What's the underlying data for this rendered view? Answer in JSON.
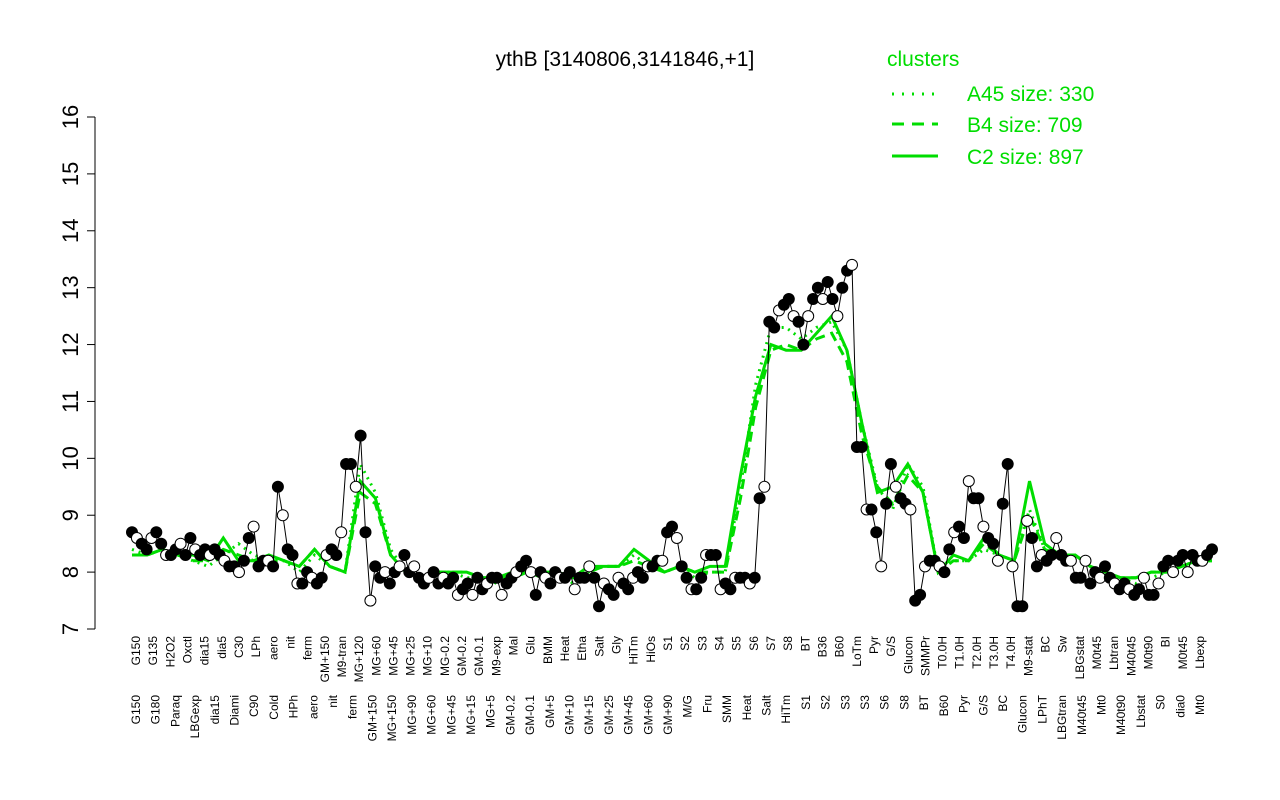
{
  "chart_data": {
    "type": "line",
    "title": "ythB [3140806,3141846,+1]",
    "ylim": [
      7,
      16
    ],
    "yticks": [
      7,
      8,
      9,
      10,
      11,
      12,
      13,
      14,
      15,
      16
    ],
    "xlabel": "",
    "ylabel": "",
    "grid": false,
    "legend": {
      "title": "clusters",
      "position": "top-right",
      "entries": [
        {
          "label": "A45 size: 330",
          "style": "dotted"
        },
        {
          "label": "B4 size: 709",
          "style": "dashed"
        },
        {
          "label": "C2 size: 897",
          "style": "solid"
        }
      ]
    },
    "tick_labels_top": [
      "G150",
      "G135",
      "H2O2",
      "Oxctl",
      "dia15",
      "dia5",
      "C30",
      "LPh",
      "aero",
      "nit",
      "ferm",
      "GM+150",
      "M9-tran",
      "MG+120",
      "MG+60",
      "MG+45",
      "MG+25",
      "MG+10",
      "MG-0.2",
      "GM-0.2",
      "GM-0.1",
      "M9-exp",
      "Mal",
      "Glu",
      "BMM",
      "Heat",
      "Etha",
      "Salt",
      "Gly",
      "HiTm",
      "HiOs",
      "S1",
      "S2",
      "S3",
      "S4",
      "S5",
      "S6",
      "S7",
      "S8",
      "BT",
      "B36",
      "B60",
      "LoTm",
      "Pyr",
      "G/S",
      "Glucon",
      "SMMPr",
      "T0.0H",
      "T1.0H",
      "T2.0H",
      "T3.0H",
      "T4.0H",
      "M9-stat",
      "BC",
      "Sw",
      "LBGstat",
      "M0t45",
      "Lbtran",
      "M40t45",
      "M0t90",
      "BI",
      "M0t45",
      "Lbexp"
    ],
    "tick_labels_bottom": [
      "G150",
      "G180",
      "Paraq",
      "LBGexp",
      "dia15",
      "Diami",
      "C90",
      "Cold",
      "HPh",
      "aero",
      "nit",
      "ferm",
      "GM+150",
      "MG+150",
      "MG+90",
      "MG+60",
      "MG+45",
      "MG+15",
      "MG+5",
      "GM-0.2",
      "GM-0.1",
      "GM+5",
      "GM+10",
      "GM+15",
      "GM+25",
      "GM+45",
      "GM+60",
      "GM+90",
      "M/G",
      "Fru",
      "SMM",
      "Heat",
      "Salt",
      "HiTm",
      "S1",
      "S2",
      "S3",
      "S3",
      "S6",
      "S8",
      "BT",
      "B60",
      "Pyr",
      "G/S",
      "BC",
      "Glucon",
      "LPhT",
      "LBGtran",
      "M40t45",
      "Mt0",
      "M40t90",
      "Lbstat",
      "S0",
      "dia0",
      "Mt0"
    ],
    "series": [
      {
        "style": "points",
        "values": [
          8.7,
          8.6,
          8.5,
          8.4,
          8.6,
          8.7,
          8.5,
          8.3,
          8.3,
          8.4,
          8.5,
          8.3,
          8.6,
          8.4,
          8.3,
          8.4,
          8.3,
          8.4,
          8.3,
          8.2,
          8.1,
          8.1,
          8.0,
          8.2,
          8.6,
          8.8,
          8.1,
          8.2,
          8.2,
          8.1,
          9.5,
          9.0,
          8.4,
          8.3,
          7.8,
          7.8,
          8.0,
          7.9,
          7.8,
          7.9,
          8.3,
          8.4,
          8.3,
          8.7,
          9.9,
          9.9,
          9.5,
          10.4,
          8.7,
          7.5,
          8.1,
          7.9,
          8.0,
          7.8,
          8.0,
          8.1,
          8.3,
          8.0,
          8.1,
          7.9,
          7.8,
          7.9,
          8.0,
          7.8,
          7.9,
          7.8,
          7.9,
          7.6,
          7.7,
          7.8,
          7.6,
          7.9,
          7.7,
          7.8,
          7.9,
          7.9,
          7.6,
          7.8,
          7.9,
          8.0,
          8.1,
          8.2,
          8.0,
          7.6,
          8.0,
          7.9,
          7.8,
          8.0,
          7.9,
          7.9,
          8.0,
          7.7,
          7.9,
          7.9,
          8.1,
          7.9,
          7.4,
          7.8,
          7.7,
          7.6,
          7.9,
          7.8,
          7.7,
          7.9,
          8.0,
          7.9,
          8.1,
          8.1,
          8.2,
          8.2,
          8.7,
          8.8,
          8.6,
          8.1,
          7.9,
          7.7,
          7.7,
          7.9,
          8.3,
          8.3,
          8.3,
          7.7,
          7.8,
          7.7,
          7.9,
          7.9,
          7.9,
          7.8,
          7.9,
          9.3,
          9.5,
          12.4,
          12.3,
          12.6,
          12.7,
          12.8,
          12.5,
          12.4,
          12.0,
          12.5,
          12.8,
          13.0,
          12.8,
          13.1,
          12.8,
          12.5,
          13.0,
          13.3,
          13.4,
          10.2,
          10.2,
          9.1,
          9.1,
          8.7,
          8.1,
          9.2,
          9.9,
          9.5,
          9.3,
          9.2,
          9.1,
          7.5,
          7.6,
          8.1,
          8.2,
          8.2,
          8.1,
          8.0,
          8.4,
          8.7,
          8.8,
          8.6,
          9.6,
          9.3,
          9.3,
          8.8,
          8.6,
          8.5,
          8.2,
          9.2,
          9.9,
          8.1,
          7.4,
          7.4,
          8.9,
          8.6,
          8.1,
          8.3,
          8.2,
          8.3,
          8.6,
          8.3,
          8.2,
          8.2,
          7.9,
          7.9,
          8.2,
          7.8,
          8.0,
          7.9,
          8.1,
          7.9,
          7.8,
          7.7,
          7.8,
          7.7,
          7.6,
          7.7,
          7.9,
          7.6,
          7.6,
          7.8,
          8.1,
          8.2,
          8.0,
          8.2,
          8.3,
          8.0,
          8.3,
          8.2,
          8.2,
          8.3,
          8.4
        ]
      },
      {
        "style": "dotted",
        "values": [
          8.4,
          8.3,
          8.4,
          8.3,
          8.2,
          8.1,
          8.3,
          8.5,
          8.3,
          8.2,
          8.2,
          8.0,
          8.3,
          8.1,
          8.0,
          9.9,
          9.4,
          8.4,
          8.0,
          7.9,
          8.0,
          8.0,
          7.9,
          7.9,
          7.8,
          7.9,
          8.0,
          7.9,
          8.0,
          7.8,
          8.0,
          8.1,
          8.1,
          8.3,
          8.1,
          8.0,
          8.1,
          7.9,
          8.0,
          8.0,
          9.5,
          11.3,
          12.3,
          12.3,
          12.1,
          12.3,
          12.4,
          11.9,
          10.6,
          9.5,
          9.1,
          9.9,
          9.5,
          8.0,
          8.2,
          8.2,
          8.4,
          8.3,
          8.2,
          9.1,
          8.4,
          8.3,
          8.3,
          8.1,
          8.0,
          7.9,
          7.8,
          7.9,
          8.0,
          8.1,
          8.2,
          8.3
        ]
      },
      {
        "style": "dashed",
        "values": [
          8.3,
          8.3,
          8.4,
          8.3,
          8.2,
          8.2,
          8.4,
          8.3,
          8.2,
          8.2,
          8.2,
          8.1,
          8.4,
          8.1,
          8.0,
          9.4,
          9.2,
          8.3,
          8.0,
          7.9,
          8.0,
          8.0,
          8.0,
          7.9,
          7.9,
          7.9,
          8.0,
          8.0,
          8.0,
          7.9,
          8.0,
          8.1,
          8.1,
          8.2,
          8.1,
          8.0,
          8.1,
          8.0,
          8.0,
          8.0,
          9.3,
          10.9,
          11.9,
          12.0,
          11.9,
          12.1,
          12.2,
          11.7,
          10.4,
          9.5,
          9.2,
          9.7,
          9.4,
          8.0,
          8.2,
          8.2,
          8.5,
          8.3,
          8.2,
          9.0,
          8.4,
          8.3,
          8.3,
          8.1,
          8.0,
          7.9,
          7.9,
          8.0,
          8.0,
          8.1,
          8.2,
          8.2
        ]
      },
      {
        "style": "solid",
        "values": [
          8.3,
          8.3,
          8.4,
          8.3,
          8.3,
          8.2,
          8.6,
          8.2,
          8.2,
          8.3,
          8.2,
          8.1,
          8.4,
          8.1,
          8.0,
          9.6,
          9.3,
          8.3,
          8.0,
          7.9,
          8.0,
          8.0,
          8.0,
          7.9,
          7.9,
          8.0,
          8.0,
          7.9,
          8.0,
          7.9,
          8.1,
          8.1,
          8.1,
          8.4,
          8.2,
          8.0,
          8.1,
          8.0,
          8.1,
          8.1,
          9.7,
          11.1,
          12.0,
          11.9,
          11.9,
          12.2,
          12.5,
          11.9,
          10.6,
          9.4,
          9.5,
          9.9,
          9.4,
          8.0,
          8.3,
          8.2,
          8.6,
          8.3,
          8.2,
          9.6,
          8.5,
          8.3,
          8.3,
          8.1,
          8.0,
          7.9,
          7.9,
          8.0,
          8.0,
          8.1,
          8.2,
          8.2
        ]
      }
    ]
  },
  "colors": {
    "axis": "#000000",
    "cluster": "#00dd00",
    "point_fill": "#000000",
    "point_alt": "#ffffff"
  }
}
